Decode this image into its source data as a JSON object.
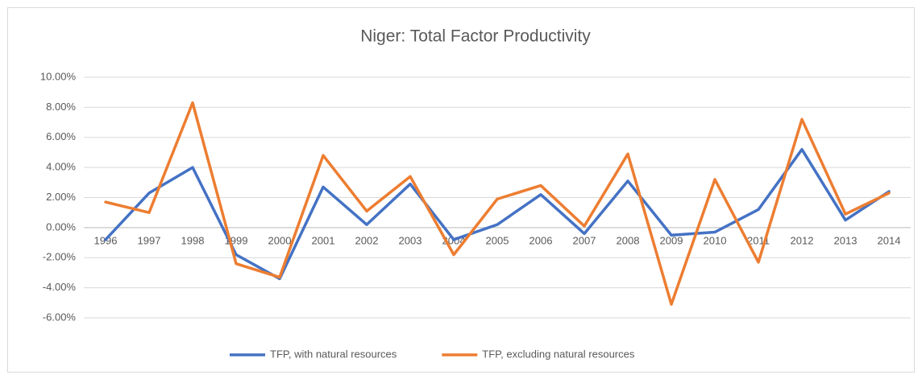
{
  "chart_data": {
    "type": "line",
    "title": "Niger: Total Factor Productivity",
    "categories": [
      "1996",
      "1997",
      "1998",
      "1999",
      "2000",
      "2001",
      "2002",
      "2003",
      "2004",
      "2005",
      "2006",
      "2007",
      "2008",
      "2009",
      "2010",
      "2011",
      "2012",
      "2013",
      "2014"
    ],
    "series": [
      {
        "name": "TFP, with natural resources",
        "color": "#4472c4",
        "values": [
          -0.8,
          2.3,
          4.0,
          -1.8,
          -3.4,
          2.7,
          0.2,
          2.9,
          -0.8,
          0.2,
          2.2,
          -0.4,
          3.1,
          -0.5,
          -0.3,
          1.2,
          5.2,
          0.5,
          2.4
        ]
      },
      {
        "name": "TFP, excluding natural resources",
        "color": "#ed7d31",
        "values": [
          1.7,
          1.0,
          8.3,
          -2.4,
          -3.3,
          4.8,
          1.1,
          3.4,
          -1.8,
          1.9,
          2.8,
          0.1,
          4.9,
          -5.1,
          3.2,
          -2.3,
          7.2,
          0.9,
          2.3
        ]
      }
    ],
    "ylim": [
      -6,
      10
    ],
    "yticks": [
      {
        "value": -6,
        "label": "-6.00%"
      },
      {
        "value": -4,
        "label": "-4.00%"
      },
      {
        "value": -2,
        "label": "-2.00%"
      },
      {
        "value": 0,
        "label": "0.00%"
      },
      {
        "value": 2,
        "label": "2.00%"
      },
      {
        "value": 4,
        "label": "4.00%"
      },
      {
        "value": 6,
        "label": "6.00%"
      },
      {
        "value": 8,
        "label": "8.00%"
      },
      {
        "value": 10,
        "label": "10.00%"
      }
    ],
    "grid": true,
    "legend": "bottom"
  }
}
